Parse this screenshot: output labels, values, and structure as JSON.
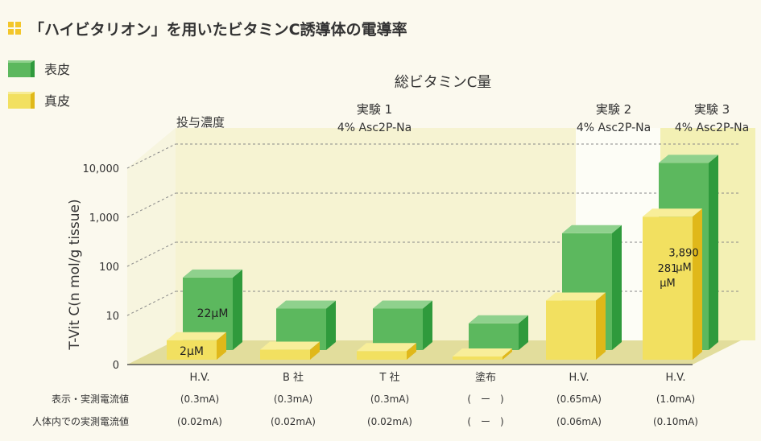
{
  "title": "「ハイビタリオン」を用いたビタミンC誘導体の電導率",
  "legend": {
    "epidermis": {
      "label": "表皮",
      "color": "#5cb85e"
    },
    "dermis": {
      "label": "真皮",
      "color": "#f2e060"
    }
  },
  "chart_data": {
    "type": "bar",
    "title": "総ビタミンC量",
    "ylabel": "T-Vit C(n mol/g tissue)",
    "yscale": "log",
    "ylim": [
      1,
      10000
    ],
    "yticks": [
      1,
      10,
      100,
      1000,
      10000
    ],
    "ytick_labels": [
      "0",
      "10",
      "100",
      "1,000",
      "10,000"
    ],
    "categories": [
      "H.V.",
      "B 社",
      "T 社",
      "塗布",
      "H.V.",
      "H.V."
    ],
    "series": [
      {
        "name": "表皮",
        "values": [
          30,
          7,
          7,
          3.5,
          240,
          6500
        ]
      },
      {
        "name": "真皮",
        "values": [
          2.5,
          1.6,
          1.5,
          1.05,
          16,
          820
        ]
      }
    ],
    "value_labels": {
      "epidermis": [
        "22μM",
        "",
        "",
        "",
        "",
        "3,890 μM"
      ],
      "dermis": [
        "2μM",
        "",
        "",
        "",
        "",
        "281 μM"
      ]
    },
    "dose_label": "投与濃度",
    "experiments": [
      {
        "name": "実験 1",
        "compound": "4% Asc2P-Na"
      },
      {
        "name": "実験 2",
        "compound": "4% Asc2P-Na"
      },
      {
        "name": "実験 3",
        "compound": "4% Asc2P-Na"
      }
    ],
    "rows": [
      {
        "label": "表示・実測電流値",
        "values": [
          "(0.3mA)",
          "(0.3mA)",
          "(0.3mA)",
          "(　ー　)",
          "(0.65mA)",
          "(1.0mA)"
        ]
      },
      {
        "label": "人体内での実測電流値",
        "values": [
          "(0.02mA)",
          "(0.02mA)",
          "(0.02mA)",
          "(　ー　)",
          "(0.06mA)",
          "(0.10mA)"
        ]
      }
    ]
  }
}
